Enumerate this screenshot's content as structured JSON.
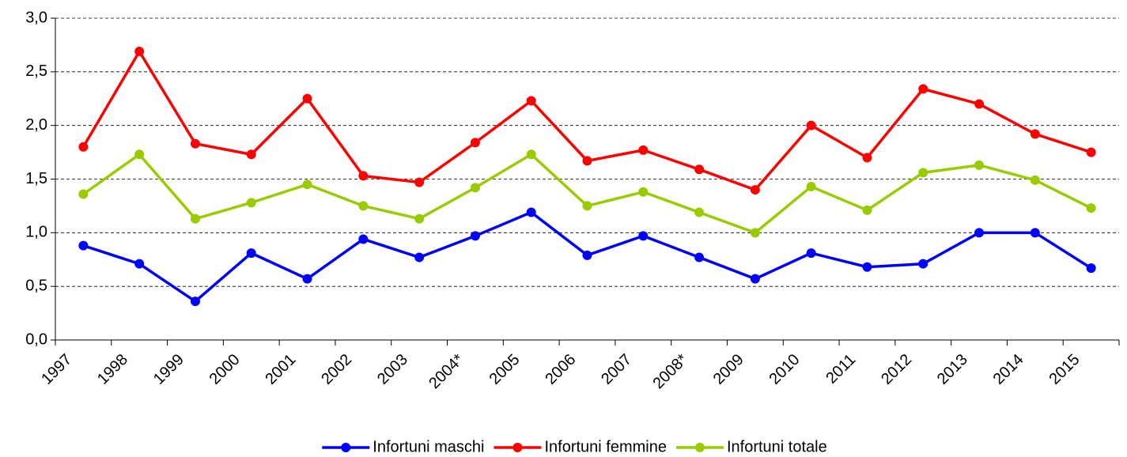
{
  "chart_data": {
    "type": "line",
    "categories": [
      "1997",
      "1998",
      "1999",
      "2000",
      "2001",
      "2002",
      "2003",
      "2004*",
      "2005",
      "2006",
      "2007",
      "2008*",
      "2009",
      "2010",
      "2011",
      "2012",
      "2013",
      "2014",
      "2015"
    ],
    "series": [
      {
        "name": "Infortuni maschi",
        "color": "#0000ff",
        "values": [
          0.88,
          0.71,
          0.36,
          0.81,
          0.57,
          0.94,
          0.77,
          0.97,
          1.19,
          0.79,
          0.97,
          0.77,
          0.57,
          0.81,
          0.68,
          0.71,
          1.0,
          1.0,
          0.67
        ]
      },
      {
        "name": "Infortuni femmine",
        "color": "#ff0000",
        "values": [
          1.8,
          2.69,
          1.83,
          1.73,
          2.25,
          1.53,
          1.47,
          1.84,
          2.23,
          1.67,
          1.77,
          1.59,
          1.4,
          2.0,
          1.7,
          2.34,
          2.2,
          1.92,
          1.75
        ]
      },
      {
        "name": "Infortuni totale",
        "color": "#99cc00",
        "values": [
          1.36,
          1.73,
          1.13,
          1.28,
          1.45,
          1.25,
          1.13,
          1.42,
          1.73,
          1.25,
          1.38,
          1.19,
          1.0,
          1.43,
          1.21,
          1.56,
          1.63,
          1.49,
          1.23
        ]
      }
    ],
    "ylim": [
      0,
      3
    ],
    "yticks": [
      {
        "value": 0,
        "label": "0,0"
      },
      {
        "value": 0.5,
        "label": "0,5"
      },
      {
        "value": 1,
        "label": "1,0"
      },
      {
        "value": 1.5,
        "label": "1,5"
      },
      {
        "value": 2,
        "label": "2,0"
      },
      {
        "value": 2.5,
        "label": "2,5"
      },
      {
        "value": 3,
        "label": "3,0"
      }
    ],
    "grid": true,
    "legend": "bottom"
  }
}
